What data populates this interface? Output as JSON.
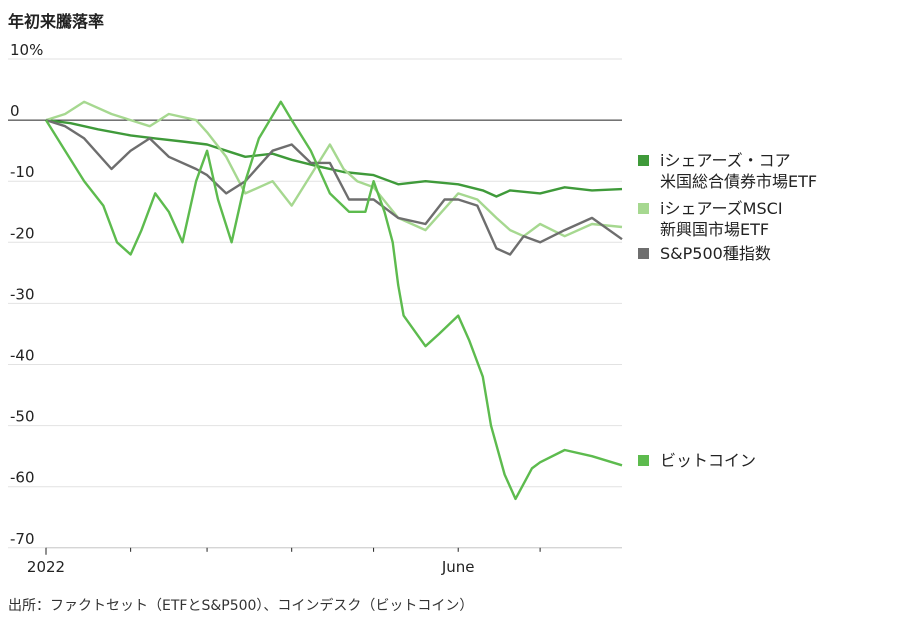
{
  "chart_data": {
    "type": "line",
    "title": "年初来騰落率",
    "ylim": [
      -70,
      10
    ],
    "yticks": [
      10,
      0,
      -10,
      -20,
      -30,
      -40,
      -50,
      -60,
      -70
    ],
    "ytick_labels": [
      "10%",
      "0",
      "-10",
      "-20",
      "-30",
      "-40",
      "-50",
      "-60",
      "-70"
    ],
    "xlim": [
      "2022-01-01",
      "2022-07-31"
    ],
    "xtick_labels": [
      {
        "date": "2022-01-01",
        "label": "2022"
      },
      {
        "date": "2022-06-01",
        "label": "June"
      }
    ],
    "xtick_marks": [
      "2022-02-01",
      "2022-03-01",
      "2022-04-01",
      "2022-05-01",
      "2022-06-01",
      "2022-07-01"
    ],
    "grid": true,
    "legend_position": "right",
    "series": [
      {
        "name": "iシェアーズ・コア 米国総合債券市場ETF",
        "legend_lines": [
          "iシェアーズ・コア",
          "米国総合債券市場ETF"
        ],
        "color": "#3f9a3a",
        "x": [
          "2022-01-01",
          "2022-01-10",
          "2022-01-20",
          "2022-02-01",
          "2022-02-10",
          "2022-02-20",
          "2022-03-01",
          "2022-03-08",
          "2022-03-15",
          "2022-03-25",
          "2022-04-01",
          "2022-04-10",
          "2022-04-20",
          "2022-05-01",
          "2022-05-10",
          "2022-05-20",
          "2022-06-01",
          "2022-06-10",
          "2022-06-15",
          "2022-06-20",
          "2022-07-01",
          "2022-07-10",
          "2022-07-20",
          "2022-07-31"
        ],
        "y": [
          0,
          -0.5,
          -1.5,
          -2.5,
          -3,
          -3.5,
          -4,
          -5,
          -6,
          -5.5,
          -6.5,
          -7.5,
          -8.5,
          -9,
          -10.5,
          -10,
          -10.5,
          -11.5,
          -12.5,
          -11.5,
          -12,
          -11,
          -11.5,
          -11.3
        ]
      },
      {
        "name": "iシェアーズMSCI 新興国市場ETF",
        "legend_lines": [
          "iシェアーズMSCI",
          "新興国市場ETF"
        ],
        "color": "#a6d890",
        "x": [
          "2022-01-01",
          "2022-01-08",
          "2022-01-15",
          "2022-01-25",
          "2022-02-01",
          "2022-02-08",
          "2022-02-15",
          "2022-02-25",
          "2022-03-01",
          "2022-03-08",
          "2022-03-15",
          "2022-03-25",
          "2022-04-01",
          "2022-04-08",
          "2022-04-15",
          "2022-04-20",
          "2022-04-25",
          "2022-05-01",
          "2022-05-10",
          "2022-05-20",
          "2022-06-01",
          "2022-06-08",
          "2022-06-15",
          "2022-06-20",
          "2022-06-25",
          "2022-07-01",
          "2022-07-10",
          "2022-07-20",
          "2022-07-31"
        ],
        "y": [
          0,
          1,
          3,
          1,
          0,
          -1,
          1,
          0,
          -2,
          -6,
          -12,
          -10,
          -14,
          -9,
          -4,
          -8,
          -10,
          -11,
          -16,
          -18,
          -12,
          -13,
          -16,
          -18,
          -19,
          -17,
          -19,
          -17,
          -17.5
        ]
      },
      {
        "name": "S&P500種指数",
        "legend_lines": [
          "S&P500種指数"
        ],
        "color": "#6e6e6e",
        "x": [
          "2022-01-01",
          "2022-01-08",
          "2022-01-15",
          "2022-01-25",
          "2022-02-01",
          "2022-02-08",
          "2022-02-15",
          "2022-02-25",
          "2022-03-01",
          "2022-03-08",
          "2022-03-15",
          "2022-03-25",
          "2022-04-01",
          "2022-04-08",
          "2022-04-15",
          "2022-04-22",
          "2022-05-01",
          "2022-05-10",
          "2022-05-20",
          "2022-05-27",
          "2022-06-01",
          "2022-06-08",
          "2022-06-15",
          "2022-06-20",
          "2022-06-25",
          "2022-07-01",
          "2022-07-10",
          "2022-07-20",
          "2022-07-31"
        ],
        "y": [
          0,
          -1,
          -3,
          -8,
          -5,
          -3,
          -6,
          -8,
          -9,
          -12,
          -10,
          -5,
          -4,
          -7,
          -7,
          -13,
          -13,
          -16,
          -17,
          -13,
          -13,
          -14,
          -21,
          -22,
          -19,
          -20,
          -18,
          -16,
          -19.5
        ]
      },
      {
        "name": "ビットコイン",
        "legend_lines": [
          "ビットコイン"
        ],
        "color": "#5dbb4e",
        "x": [
          "2022-01-01",
          "2022-01-08",
          "2022-01-15",
          "2022-01-22",
          "2022-01-27",
          "2022-02-01",
          "2022-02-05",
          "2022-02-10",
          "2022-02-15",
          "2022-02-20",
          "2022-02-25",
          "2022-03-01",
          "2022-03-05",
          "2022-03-10",
          "2022-03-15",
          "2022-03-20",
          "2022-03-28",
          "2022-04-01",
          "2022-04-08",
          "2022-04-15",
          "2022-04-22",
          "2022-04-28",
          "2022-05-01",
          "2022-05-05",
          "2022-05-08",
          "2022-05-10",
          "2022-05-12",
          "2022-05-20",
          "2022-05-25",
          "2022-06-01",
          "2022-06-05",
          "2022-06-10",
          "2022-06-13",
          "2022-06-18",
          "2022-06-22",
          "2022-06-28",
          "2022-07-01",
          "2022-07-10",
          "2022-07-20",
          "2022-07-31"
        ],
        "y": [
          0,
          -5,
          -10,
          -14,
          -20,
          -22,
          -18,
          -12,
          -15,
          -20,
          -10,
          -5,
          -13,
          -20,
          -10,
          -3,
          3,
          0,
          -5,
          -12,
          -15,
          -15,
          -10,
          -15,
          -20,
          -27,
          -32,
          -37,
          -35,
          -32,
          -36,
          -42,
          -50,
          -58,
          -62,
          -57,
          -56,
          -54,
          -55,
          -56.5
        ]
      }
    ]
  },
  "source": "出所：ファクトセット（ETFとS&P500）、コインデスク（ビットコイン）"
}
